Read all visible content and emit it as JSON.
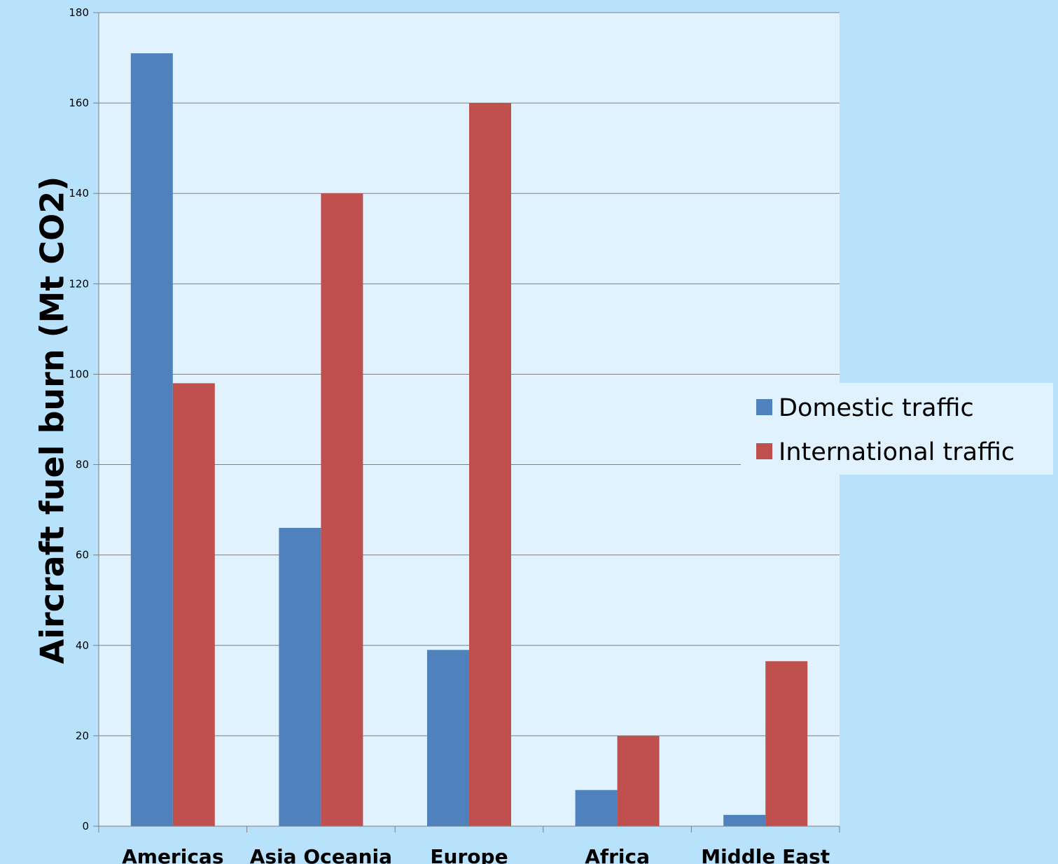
{
  "chart_data": {
    "type": "bar",
    "title": "",
    "xlabel": "",
    "ylabel": "Aircraft fuel burn (Mt CO2)",
    "categories": [
      "Americas",
      "Asia Oceania",
      "Europe",
      "Africa",
      "Middle East"
    ],
    "series": [
      {
        "name": "Domestic traffic",
        "color": "#4f81bd",
        "values": [
          171,
          66,
          39,
          8,
          2.5
        ]
      },
      {
        "name": "International traffic",
        "color": "#c0504d",
        "values": [
          98,
          140,
          160,
          20,
          36.5
        ]
      }
    ],
    "ylim": [
      0,
      180
    ],
    "yticks": [
      "0",
      "20",
      "40",
      "60",
      "80",
      "100",
      "120",
      "140",
      "160",
      "180"
    ],
    "grid": true,
    "legend_position": "right"
  },
  "colors": {
    "page_background": "#b8e2fb",
    "plot_background": "#e0f2fd",
    "gridline": "#7f7f7f"
  }
}
